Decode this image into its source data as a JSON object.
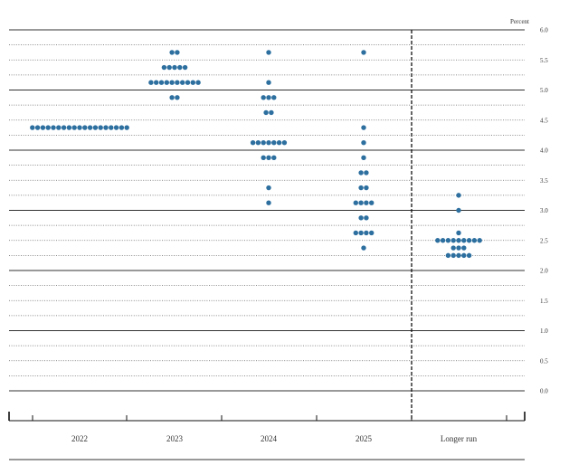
{
  "chart_data": {
    "type": "scatter",
    "ylabel": "Percent",
    "ylim": [
      0,
      6
    ],
    "y_ticks": [
      "6.0",
      "5.5",
      "5.0",
      "4.5",
      "4.0",
      "3.5",
      "3.0",
      "2.5",
      "2.0",
      "1.5",
      "1.0",
      "0.5",
      "0.0"
    ],
    "y_tick_values": [
      6.0,
      5.5,
      5.0,
      4.5,
      4.0,
      3.5,
      3.0,
      2.5,
      2.0,
      1.5,
      1.0,
      0.5,
      0.0
    ],
    "categories": [
      "2022",
      "2023",
      "2024",
      "2025",
      "Longer run"
    ],
    "grid": "dotted horizontal every 0.25 percentage point; solid at whole numbers",
    "series": [
      {
        "category": "2022",
        "points": [
          {
            "y": 4.375,
            "count": 19
          }
        ]
      },
      {
        "category": "2023",
        "points": [
          {
            "y": 5.625,
            "count": 2
          },
          {
            "y": 5.375,
            "count": 5
          },
          {
            "y": 5.125,
            "count": 10
          },
          {
            "y": 4.875,
            "count": 2
          }
        ]
      },
      {
        "category": "2024",
        "points": [
          {
            "y": 5.625,
            "count": 1
          },
          {
            "y": 5.125,
            "count": 1
          },
          {
            "y": 4.875,
            "count": 3
          },
          {
            "y": 4.625,
            "count": 2
          },
          {
            "y": 4.125,
            "count": 7
          },
          {
            "y": 3.875,
            "count": 3
          },
          {
            "y": 3.375,
            "count": 1
          },
          {
            "y": 3.125,
            "count": 1
          }
        ]
      },
      {
        "category": "2025",
        "points": [
          {
            "y": 5.625,
            "count": 1
          },
          {
            "y": 4.375,
            "count": 1
          },
          {
            "y": 4.125,
            "count": 1
          },
          {
            "y": 3.875,
            "count": 1
          },
          {
            "y": 3.625,
            "count": 2
          },
          {
            "y": 3.375,
            "count": 2
          },
          {
            "y": 3.125,
            "count": 4
          },
          {
            "y": 2.875,
            "count": 2
          },
          {
            "y": 2.625,
            "count": 4
          },
          {
            "y": 2.375,
            "count": 1
          }
        ]
      },
      {
        "category": "Longer run",
        "points": [
          {
            "y": 3.25,
            "count": 1
          },
          {
            "y": 3.0,
            "count": 1
          },
          {
            "y": 2.625,
            "count": 1
          },
          {
            "y": 2.5,
            "count": 9
          },
          {
            "y": 2.375,
            "count": 3
          },
          {
            "y": 2.25,
            "count": 5
          }
        ]
      }
    ],
    "colors": {
      "dot": "#2d6f9f",
      "solid_line": "#333333",
      "dotted_line": "#666666",
      "divider": "#111111"
    }
  }
}
